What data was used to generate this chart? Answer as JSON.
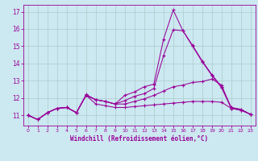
{
  "xlabel": "Windchill (Refroidissement éolien,°C)",
  "bg_color": "#cce8f0",
  "line_color": "#990099",
  "grid_color": "#aacccc",
  "xlim": [
    -0.5,
    23.5
  ],
  "ylim": [
    10.4,
    17.4
  ],
  "x_ticks": [
    0,
    1,
    2,
    3,
    4,
    5,
    6,
    7,
    8,
    9,
    10,
    11,
    12,
    13,
    14,
    15,
    16,
    17,
    18,
    19,
    20,
    21,
    22,
    23
  ],
  "y_ticks": [
    11,
    12,
    13,
    14,
    15,
    16,
    17
  ],
  "lines": [
    {
      "x": [
        0,
        1,
        2,
        3,
        4,
        5,
        6,
        7,
        8,
        9,
        10,
        11,
        12,
        13,
        14,
        15,
        16,
        17,
        18,
        19,
        20,
        21,
        22,
        23
      ],
      "y": [
        11.0,
        10.75,
        11.15,
        11.4,
        11.45,
        11.15,
        12.2,
        11.9,
        11.8,
        11.65,
        12.15,
        12.35,
        12.65,
        12.8,
        15.4,
        17.1,
        15.9,
        15.05,
        14.15,
        13.35,
        12.65,
        11.45,
        11.35,
        11.05
      ]
    },
    {
      "x": [
        0,
        1,
        2,
        3,
        4,
        5,
        6,
        7,
        8,
        9,
        10,
        11,
        12,
        13,
        14,
        15,
        16,
        17,
        18,
        19,
        20,
        21,
        22,
        23
      ],
      "y": [
        11.0,
        10.75,
        11.15,
        11.4,
        11.45,
        11.15,
        12.15,
        11.9,
        11.8,
        11.65,
        11.85,
        12.1,
        12.25,
        12.55,
        14.45,
        15.95,
        15.9,
        15.0,
        14.1,
        13.3,
        12.6,
        11.4,
        11.3,
        11.05
      ]
    },
    {
      "x": [
        0,
        1,
        2,
        3,
        4,
        5,
        6,
        7,
        8,
        9,
        10,
        11,
        12,
        13,
        14,
        15,
        16,
        17,
        18,
        19,
        20,
        21,
        22,
        23
      ],
      "y": [
        11.0,
        10.75,
        11.15,
        11.4,
        11.45,
        11.15,
        12.15,
        11.9,
        11.8,
        11.65,
        11.65,
        11.8,
        11.95,
        12.15,
        12.4,
        12.65,
        12.75,
        12.9,
        12.95,
        13.1,
        12.75,
        11.4,
        11.3,
        11.05
      ]
    },
    {
      "x": [
        0,
        1,
        2,
        3,
        4,
        5,
        6,
        7,
        8,
        9,
        10,
        11,
        12,
        13,
        14,
        15,
        16,
        17,
        18,
        19,
        20,
        21,
        22,
        23
      ],
      "y": [
        11.0,
        10.75,
        11.15,
        11.4,
        11.45,
        11.15,
        12.15,
        11.65,
        11.55,
        11.45,
        11.45,
        11.5,
        11.55,
        11.6,
        11.65,
        11.7,
        11.75,
        11.8,
        11.8,
        11.8,
        11.75,
        11.4,
        11.3,
        11.05
      ]
    }
  ]
}
